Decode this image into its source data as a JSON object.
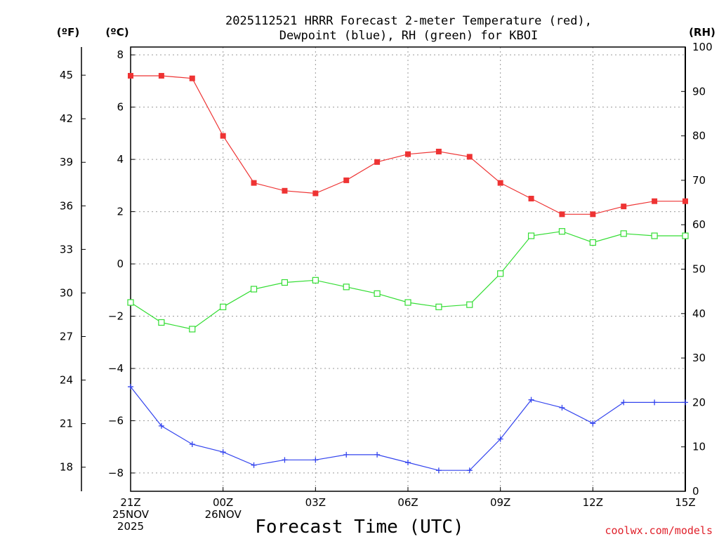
{
  "chart_data": {
    "type": "line",
    "title_line1": "2025112521 HRRR Forecast 2-meter Temperature (red),",
    "title_line2": "Dewpoint (blue), RH (green) for KBOI",
    "xlabel": "Forecast Time (UTC)",
    "watermark": "coolwx.com/models",
    "unit_left_f": "(ºF)",
    "unit_left_c": "(ºC)",
    "unit_right": "(RH)",
    "x_ticks": [
      {
        "hour": 0,
        "labels": [
          "21Z",
          "25NOV",
          "2025"
        ]
      },
      {
        "hour": 3,
        "labels": [
          "00Z",
          "26NOV"
        ]
      },
      {
        "hour": 6,
        "labels": [
          "03Z"
        ]
      },
      {
        "hour": 9,
        "labels": [
          "06Z"
        ]
      },
      {
        "hour": 12,
        "labels": [
          "09Z"
        ]
      },
      {
        "hour": 15,
        "labels": [
          "12Z"
        ]
      },
      {
        "hour": 18,
        "labels": [
          "15Z"
        ]
      }
    ],
    "xlim": [
      0,
      18
    ],
    "ylim_c": [
      -8.7,
      8.3
    ],
    "ylim_rh": [
      0,
      100
    ],
    "c_ticks": [
      8,
      6,
      4,
      2,
      0,
      -2,
      -4,
      -6,
      -8
    ],
    "c_tick_labels": [
      "8",
      "6",
      "4",
      "2",
      "0",
      "−2",
      "−4",
      "−6",
      "−8"
    ],
    "f_ticks": [
      45,
      42,
      39,
      36,
      33,
      30,
      27,
      24,
      21,
      18
    ],
    "rh_ticks": [
      100,
      90,
      80,
      70,
      60,
      50,
      40,
      30,
      20,
      10,
      0
    ],
    "series": [
      {
        "name": "2-meter Temperature",
        "unit": "C",
        "color": "#ee3333",
        "marker": "filled-square",
        "values": [
          7.2,
          7.2,
          7.1,
          4.9,
          3.1,
          2.8,
          2.7,
          3.2,
          3.9,
          4.2,
          4.3,
          4.1,
          3.1,
          2.5,
          1.9,
          1.9,
          2.2,
          2.4,
          2.4
        ]
      },
      {
        "name": "Dewpoint",
        "unit": "C",
        "color": "#3344ee",
        "marker": "plus",
        "values": [
          -4.7,
          -6.2,
          -6.9,
          -7.2,
          -7.7,
          -7.5,
          -7.5,
          -7.3,
          -7.3,
          -7.6,
          -7.9,
          -7.9,
          -6.7,
          -5.2,
          -5.5,
          -6.1,
          -5.3,
          -5.3,
          -5.3
        ]
      },
      {
        "name": "RH",
        "unit": "%",
        "color": "#33dd33",
        "marker": "open-square",
        "values": [
          42.5,
          38,
          36.5,
          41.5,
          45.5,
          47,
          47.5,
          46,
          44.5,
          42.5,
          41.5,
          42,
          49,
          57.5,
          58.5,
          56,
          58,
          57.5,
          57.5
        ]
      }
    ]
  }
}
